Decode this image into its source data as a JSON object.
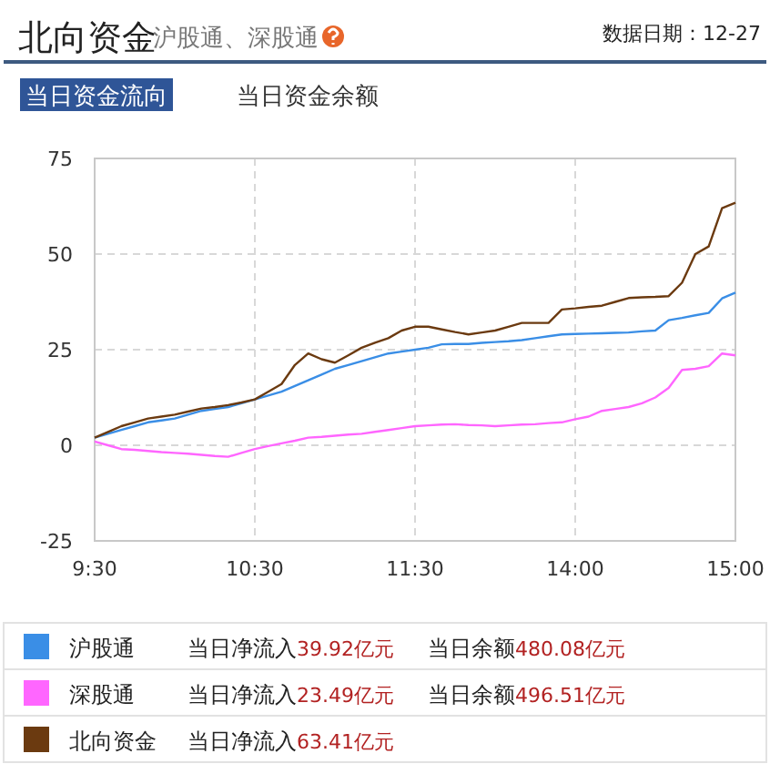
{
  "chart_data": {
    "type": "line",
    "title": "北向资金",
    "subtitle": "沪股通、深股通",
    "annotations": [
      "数据日期：12-27",
      "当日资金流向",
      "当日资金余额",
      "当日净流入",
      "39.92亿元",
      "当日余额",
      "480.08亿元",
      "当日净流入",
      "23.49亿元",
      "当日余额",
      "496.51亿元",
      "当日净流入",
      "63.41亿元"
    ],
    "categories": [
      "9:30",
      null,
      null,
      null,
      null,
      null,
      null,
      null,
      null,
      null,
      null,
      null,
      "10:30",
      null,
      null,
      null,
      null,
      null,
      null,
      null,
      null,
      null,
      null,
      null,
      "11:30",
      null,
      null,
      null,
      null,
      null,
      null,
      null,
      null,
      null,
      null,
      null,
      "14:00",
      null,
      null,
      null,
      null,
      null,
      null,
      null,
      null,
      null,
      null,
      null,
      "15:00"
    ],
    "ylim": [
      -25,
      75
    ],
    "yticks": [
      75,
      50,
      25,
      0,
      -25
    ],
    "grid": true,
    "legend": "bottom",
    "line_style": "solid",
    "marker": "none",
    "series": [
      {
        "name": "沪股通",
        "color": "#3a8ee6",
        "values": [
          2,
          3,
          4,
          5,
          6,
          6.5,
          7,
          8,
          9,
          9.5,
          10,
          11,
          12,
          13,
          14,
          15.5,
          17,
          18.5,
          20,
          21,
          22,
          23,
          24,
          24.5,
          25,
          25.5,
          26.4,
          26.5,
          26.5,
          26.8,
          27,
          27.2,
          27.5,
          28,
          28.5,
          29,
          29.1,
          29.2,
          29.3,
          29.4,
          29.5,
          29.8,
          30,
          32.7,
          33.3,
          34,
          34.6,
          38.4,
          39.9
        ]
      },
      {
        "name": "深股通",
        "color": "#ff66ff",
        "values": [
          1,
          0,
          -1,
          -1.2,
          -1.5,
          -1.8,
          -2,
          -2.2,
          -2.5,
          -2.8,
          -3,
          -2,
          -1,
          -0.2,
          0.5,
          1.2,
          2,
          2.2,
          2.5,
          2.8,
          3,
          3.5,
          4,
          4.5,
          5,
          5.2,
          5.4,
          5.5,
          5.3,
          5.2,
          5,
          5.2,
          5.4,
          5.5,
          5.8,
          6,
          6.8,
          7.5,
          9,
          9.5,
          10,
          11,
          12.5,
          15,
          19.7,
          20,
          20.7,
          24,
          23.5
        ]
      },
      {
        "name": "北向资金",
        "color": "#6b3a10",
        "values": [
          2,
          3.5,
          5,
          6,
          7,
          7.5,
          8,
          8.8,
          9.6,
          10,
          10.5,
          11.2,
          12,
          14,
          16,
          21,
          24,
          22.5,
          21.6,
          23.5,
          25.5,
          26.8,
          28,
          30,
          31,
          31,
          30.3,
          29.6,
          29,
          29.5,
          30,
          31,
          32,
          32,
          32,
          35.5,
          35.8,
          36.2,
          36.5,
          37.5,
          38.5,
          38.7,
          38.8,
          39,
          42.5,
          50,
          52,
          62,
          63.4
        ]
      }
    ]
  }
}
